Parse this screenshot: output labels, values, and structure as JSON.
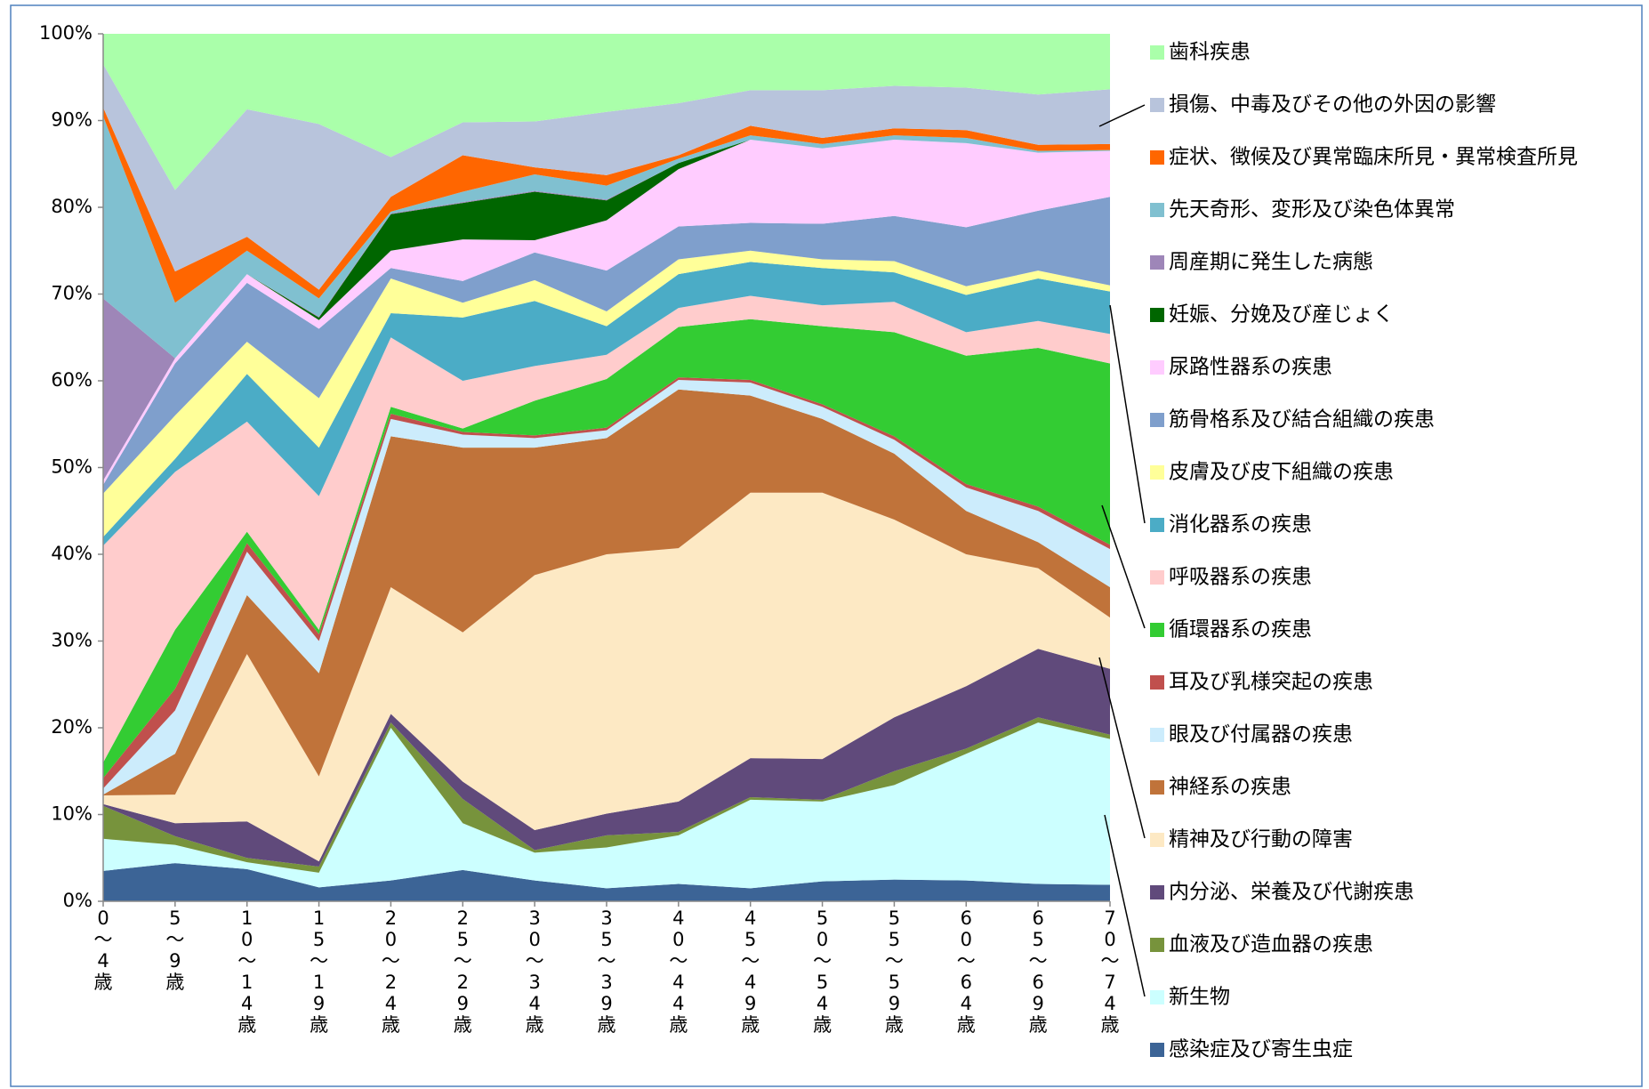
{
  "chart_data": {
    "type": "stacked_area_100",
    "categories": [
      "0～4歳",
      "5～9歳",
      "10～14歳",
      "15～19歳",
      "20～24歳",
      "25～29歳",
      "30～34歳",
      "35～39歳",
      "40～44歳",
      "45～49歳",
      "50～54歳",
      "55～59歳",
      "60～64歳",
      "65～69歳",
      "70～74歳"
    ],
    "ylim": [
      0,
      100
    ],
    "yticks": [
      {
        "value": 0,
        "label": "0%"
      },
      {
        "value": 10,
        "label": "10%"
      },
      {
        "value": 20,
        "label": "20%"
      },
      {
        "value": 30,
        "label": "30%"
      },
      {
        "value": 40,
        "label": "40%"
      },
      {
        "value": 50,
        "label": "50%"
      },
      {
        "value": 60,
        "label": "60%"
      },
      {
        "value": 70,
        "label": "70%"
      },
      {
        "value": 80,
        "label": "80%"
      },
      {
        "value": 90,
        "label": "90%"
      },
      {
        "value": 100,
        "label": "100%"
      }
    ],
    "legend": "right",
    "series": [
      {
        "name": "感染症及び寄生虫症",
        "color": "#3c6496",
        "values": [
          3.5,
          4.4,
          3.7,
          1.6,
          2.4,
          3.6,
          2.4,
          1.5,
          2.0,
          1.5,
          2.3,
          2.5,
          2.4,
          2.0,
          1.9
        ]
      },
      {
        "name": "新生物",
        "color": "#ccffff",
        "values": [
          3.7,
          2.1,
          0.8,
          1.7,
          17.6,
          5.4,
          3.2,
          4.7,
          5.6,
          10.2,
          9.2,
          10.9,
          14.6,
          18.6,
          16.8
        ]
      },
      {
        "name": "血液及び造血器の疾患",
        "color": "#77933c",
        "values": [
          3.8,
          1.0,
          0.5,
          0.7,
          0.6,
          2.8,
          0.3,
          1.4,
          0.4,
          0.3,
          0.2,
          1.6,
          0.6,
          0.6,
          0.5
        ]
      },
      {
        "name": "内分泌、栄養及び代謝疾患",
        "color": "#604a7b",
        "values": [
          0.2,
          1.5,
          4.2,
          0.6,
          1.0,
          2.0,
          2.3,
          2.5,
          3.5,
          4.5,
          4.7,
          6.2,
          7.2,
          7.9,
          7.6
        ]
      },
      {
        "name": "精神及び行動の障害",
        "color": "#fde9c4",
        "values": [
          1.0,
          3.3,
          19.3,
          9.8,
          14.6,
          17.2,
          29.4,
          29.9,
          29.2,
          30.6,
          30.7,
          22.8,
          15.2,
          9.3,
          5.9
        ]
      },
      {
        "name": "神経系の疾患",
        "color": "#c0733a",
        "values": [
          0.1,
          4.7,
          6.8,
          11.9,
          17.4,
          21.3,
          14.7,
          13.4,
          18.3,
          11.2,
          8.5,
          7.6,
          5.0,
          3.0,
          3.5
        ]
      },
      {
        "name": "眼及び付属器の疾患",
        "color": "#ccecfc",
        "values": [
          0.7,
          5.0,
          5.0,
          3.7,
          2.0,
          1.5,
          1.1,
          0.9,
          1.1,
          1.5,
          1.4,
          1.6,
          2.7,
          3.6,
          4.4
        ]
      },
      {
        "name": "耳及び乳様突起の疾患",
        "color": "#c0504d",
        "values": [
          1.2,
          2.5,
          1.0,
          0.8,
          0.6,
          0.3,
          0.3,
          0.3,
          0.3,
          0.3,
          0.3,
          0.4,
          0.4,
          0.5,
          0.5
        ]
      },
      {
        "name": "循環器系の疾患",
        "color": "#33cc33",
        "values": [
          1.8,
          6.8,
          1.3,
          0.5,
          0.8,
          0.4,
          4.0,
          5.6,
          5.8,
          7.0,
          9.0,
          12.0,
          14.8,
          18.3,
          20.9
        ]
      },
      {
        "name": "呼吸器系の疾患",
        "color": "#ffcccc",
        "values": [
          25.0,
          18.2,
          12.7,
          15.4,
          8.0,
          5.5,
          4.0,
          2.8,
          2.2,
          2.7,
          2.4,
          3.5,
          2.7,
          3.1,
          3.4
        ]
      },
      {
        "name": "消化器系の疾患",
        "color": "#4bacc6",
        "values": [
          1.0,
          1.5,
          5.5,
          5.6,
          2.8,
          7.3,
          7.5,
          3.3,
          3.9,
          3.9,
          4.3,
          3.4,
          4.3,
          4.9,
          4.9
        ]
      },
      {
        "name": "皮膚及び皮下組織の疾患",
        "color": "#ffff99",
        "values": [
          5.0,
          5.0,
          3.7,
          5.7,
          4.0,
          1.7,
          2.4,
          1.7,
          1.7,
          1.3,
          1.0,
          1.3,
          1.0,
          0.9,
          0.7
        ]
      },
      {
        "name": "筋骨格系及び結合組織の疾患",
        "color": "#7f9fcc",
        "values": [
          1.0,
          6.0,
          6.8,
          8.0,
          1.2,
          2.5,
          3.2,
          4.7,
          3.8,
          3.2,
          4.1,
          5.2,
          6.8,
          6.9,
          10.2
        ]
      },
      {
        "name": "尿路性器系の疾患",
        "color": "#ffccff",
        "values": [
          0.5,
          0.6,
          1.0,
          1.0,
          2.0,
          4.8,
          1.4,
          5.8,
          6.6,
          9.6,
          8.7,
          8.8,
          9.7,
          6.7,
          5.3
        ]
      },
      {
        "name": "妊娠、分娩及び産じょく",
        "color": "#006600",
        "values": [
          0,
          0,
          0,
          0.3,
          4.2,
          4.2,
          5.6,
          2.3,
          0.7,
          0,
          0,
          0,
          0,
          0,
          0
        ]
      },
      {
        "name": "周産期に発生した病態",
        "color": "#9e86b8",
        "values": [
          21.0,
          0,
          0,
          0.1,
          0.1,
          0.1,
          0.1,
          0.1,
          0,
          0,
          0,
          0,
          0,
          0,
          0
        ]
      },
      {
        "name": "先天奇形、変形及び染色体異常",
        "color": "#80c0d0",
        "values": [
          21.0,
          6.4,
          2.7,
          2.1,
          0.2,
          1.2,
          1.9,
          1.6,
          0.5,
          0.5,
          0.5,
          0.5,
          0.6,
          0.2,
          0.1
        ]
      },
      {
        "name": "症状、徴候及び異常臨床所見・異常検査所見",
        "color": "#ff6600",
        "values": [
          1.0,
          3.6,
          1.6,
          1.0,
          1.7,
          4.2,
          0.8,
          1.2,
          0.4,
          1.1,
          0.7,
          0.8,
          0.9,
          0.7,
          0.7
        ]
      },
      {
        "name": "損傷、中毒及びその他の外因の影響",
        "color": "#b8c4dc",
        "values": [
          5.0,
          9.4,
          14.7,
          19.1,
          4.6,
          3.8,
          5.3,
          7.3,
          6.0,
          4.1,
          5.5,
          4.9,
          4.9,
          5.8,
          6.3
        ]
      },
      {
        "name": "歯科疾患",
        "color": "#aaffaa",
        "values": [
          3.5,
          18.0,
          8.7,
          10.4,
          14.2,
          10.2,
          10.1,
          9.0,
          8.0,
          6.5,
          6.5,
          6.0,
          6.2,
          7.0,
          6.4
        ]
      }
    ]
  }
}
